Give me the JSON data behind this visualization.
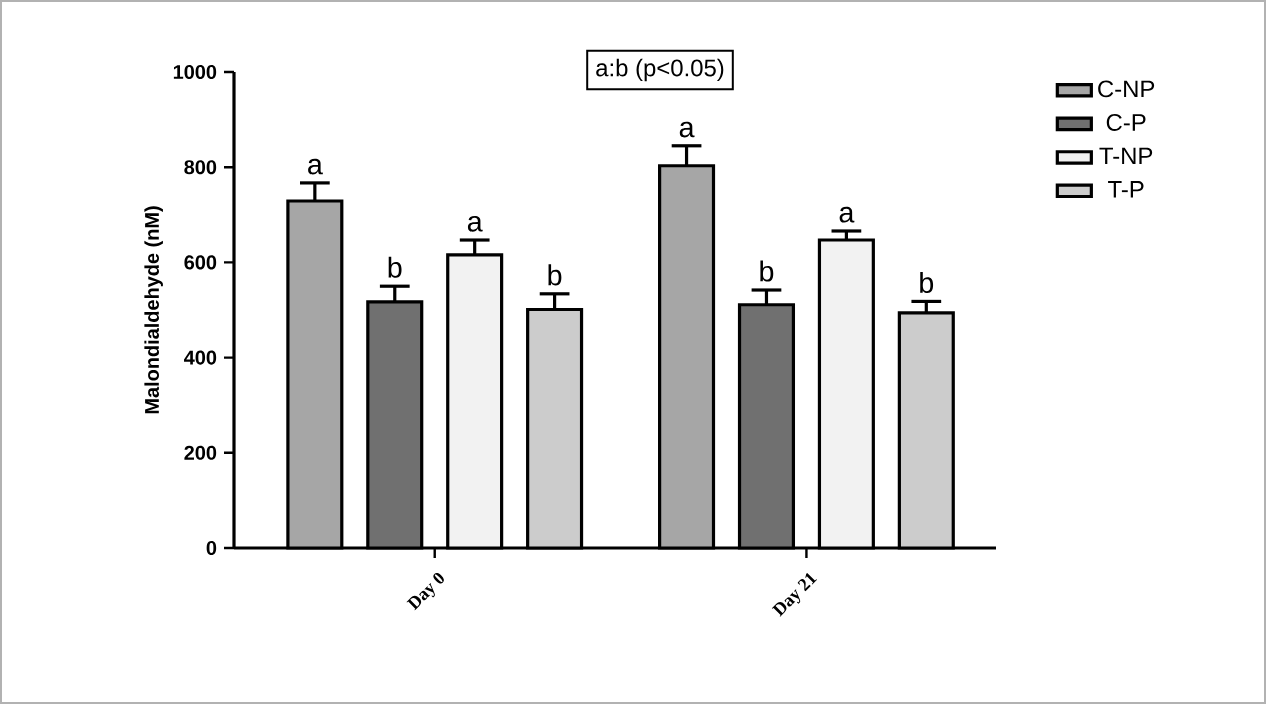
{
  "chart_data": {
    "type": "bar",
    "ylabel": "Malondialdehyde (nM)",
    "categories": [
      "Day 0",
      "Day 21"
    ],
    "ylim": [
      0,
      1000
    ],
    "yticks": [
      0,
      200,
      400,
      600,
      800,
      1000
    ],
    "legend": "right",
    "grid": false,
    "annotations": [
      "a:b (p<0.05)"
    ],
    "series": [
      {
        "name": "C-NP",
        "color": "#a6a6a6",
        "values": [
          729,
          803
        ],
        "errors": [
          [
            729,
            767
          ],
          [
            803,
            845
          ]
        ],
        "value_labels": [
          "a",
          "a"
        ]
      },
      {
        "name": "C-P",
        "color": "#707070",
        "values": [
          517,
          511
        ],
        "errors": [
          [
            517,
            550
          ],
          [
            511,
            542
          ]
        ],
        "value_labels": [
          "b",
          "b"
        ]
      },
      {
        "name": "T-NP",
        "color": "#f2f2f2",
        "values": [
          616,
          647
        ],
        "errors": [
          [
            616,
            647
          ],
          [
            647,
            666
          ]
        ],
        "value_labels": [
          "a",
          "a"
        ]
      },
      {
        "name": "T-P",
        "color": "#cccccc",
        "values": [
          501,
          494
        ],
        "errors": [
          [
            501,
            534
          ],
          [
            494,
            518
          ]
        ],
        "value_labels": [
          "b",
          "b"
        ]
      }
    ]
  }
}
